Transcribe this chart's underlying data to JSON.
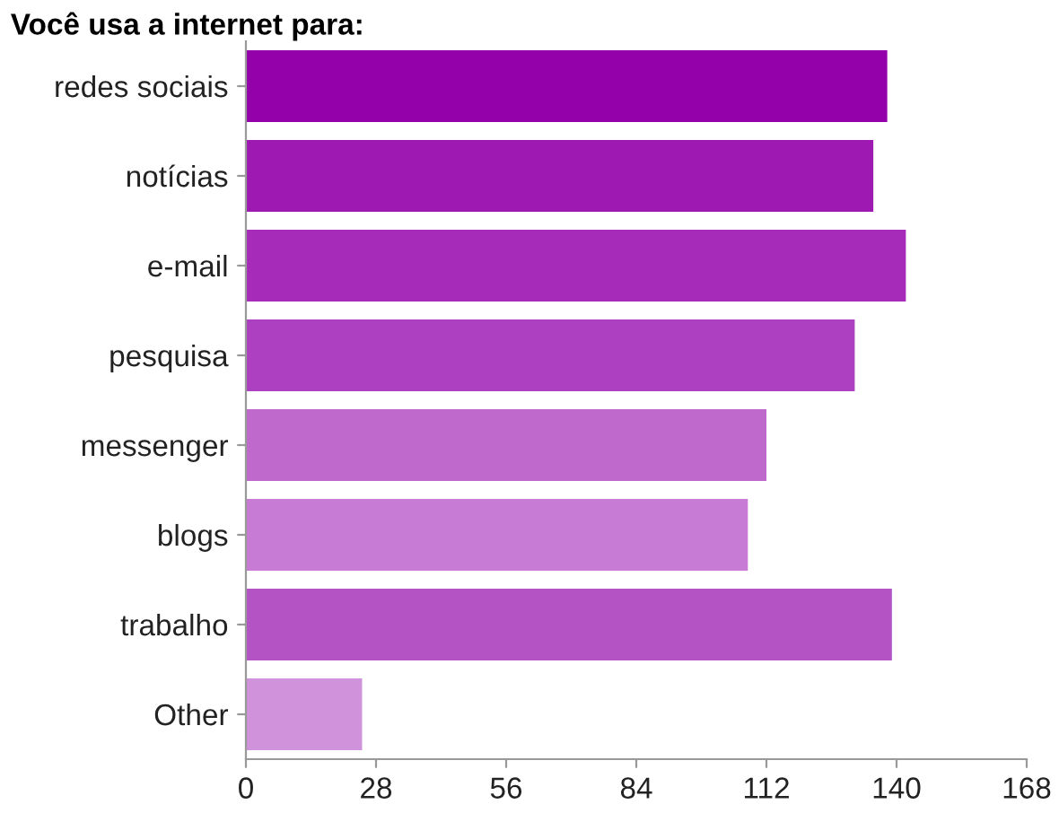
{
  "chart_data": {
    "type": "bar",
    "orientation": "horizontal",
    "title": "Você usa a internet para:",
    "categories": [
      "redes sociais",
      "notícias",
      "e-mail",
      "pesquisa",
      "messenger",
      "blogs",
      "trabalho",
      "Other"
    ],
    "values": [
      138,
      135,
      142,
      131,
      112,
      108,
      139,
      25
    ],
    "colors": [
      "#9400aa",
      "#9e19b2",
      "#a62bb8",
      "#ad40c0",
      "#bf69cc",
      "#c77bd4",
      "#b453c4",
      "#d092da"
    ],
    "xlim": [
      0,
      168
    ],
    "xticks": [
      0,
      28,
      56,
      84,
      112,
      140,
      168
    ],
    "grid": false
  }
}
